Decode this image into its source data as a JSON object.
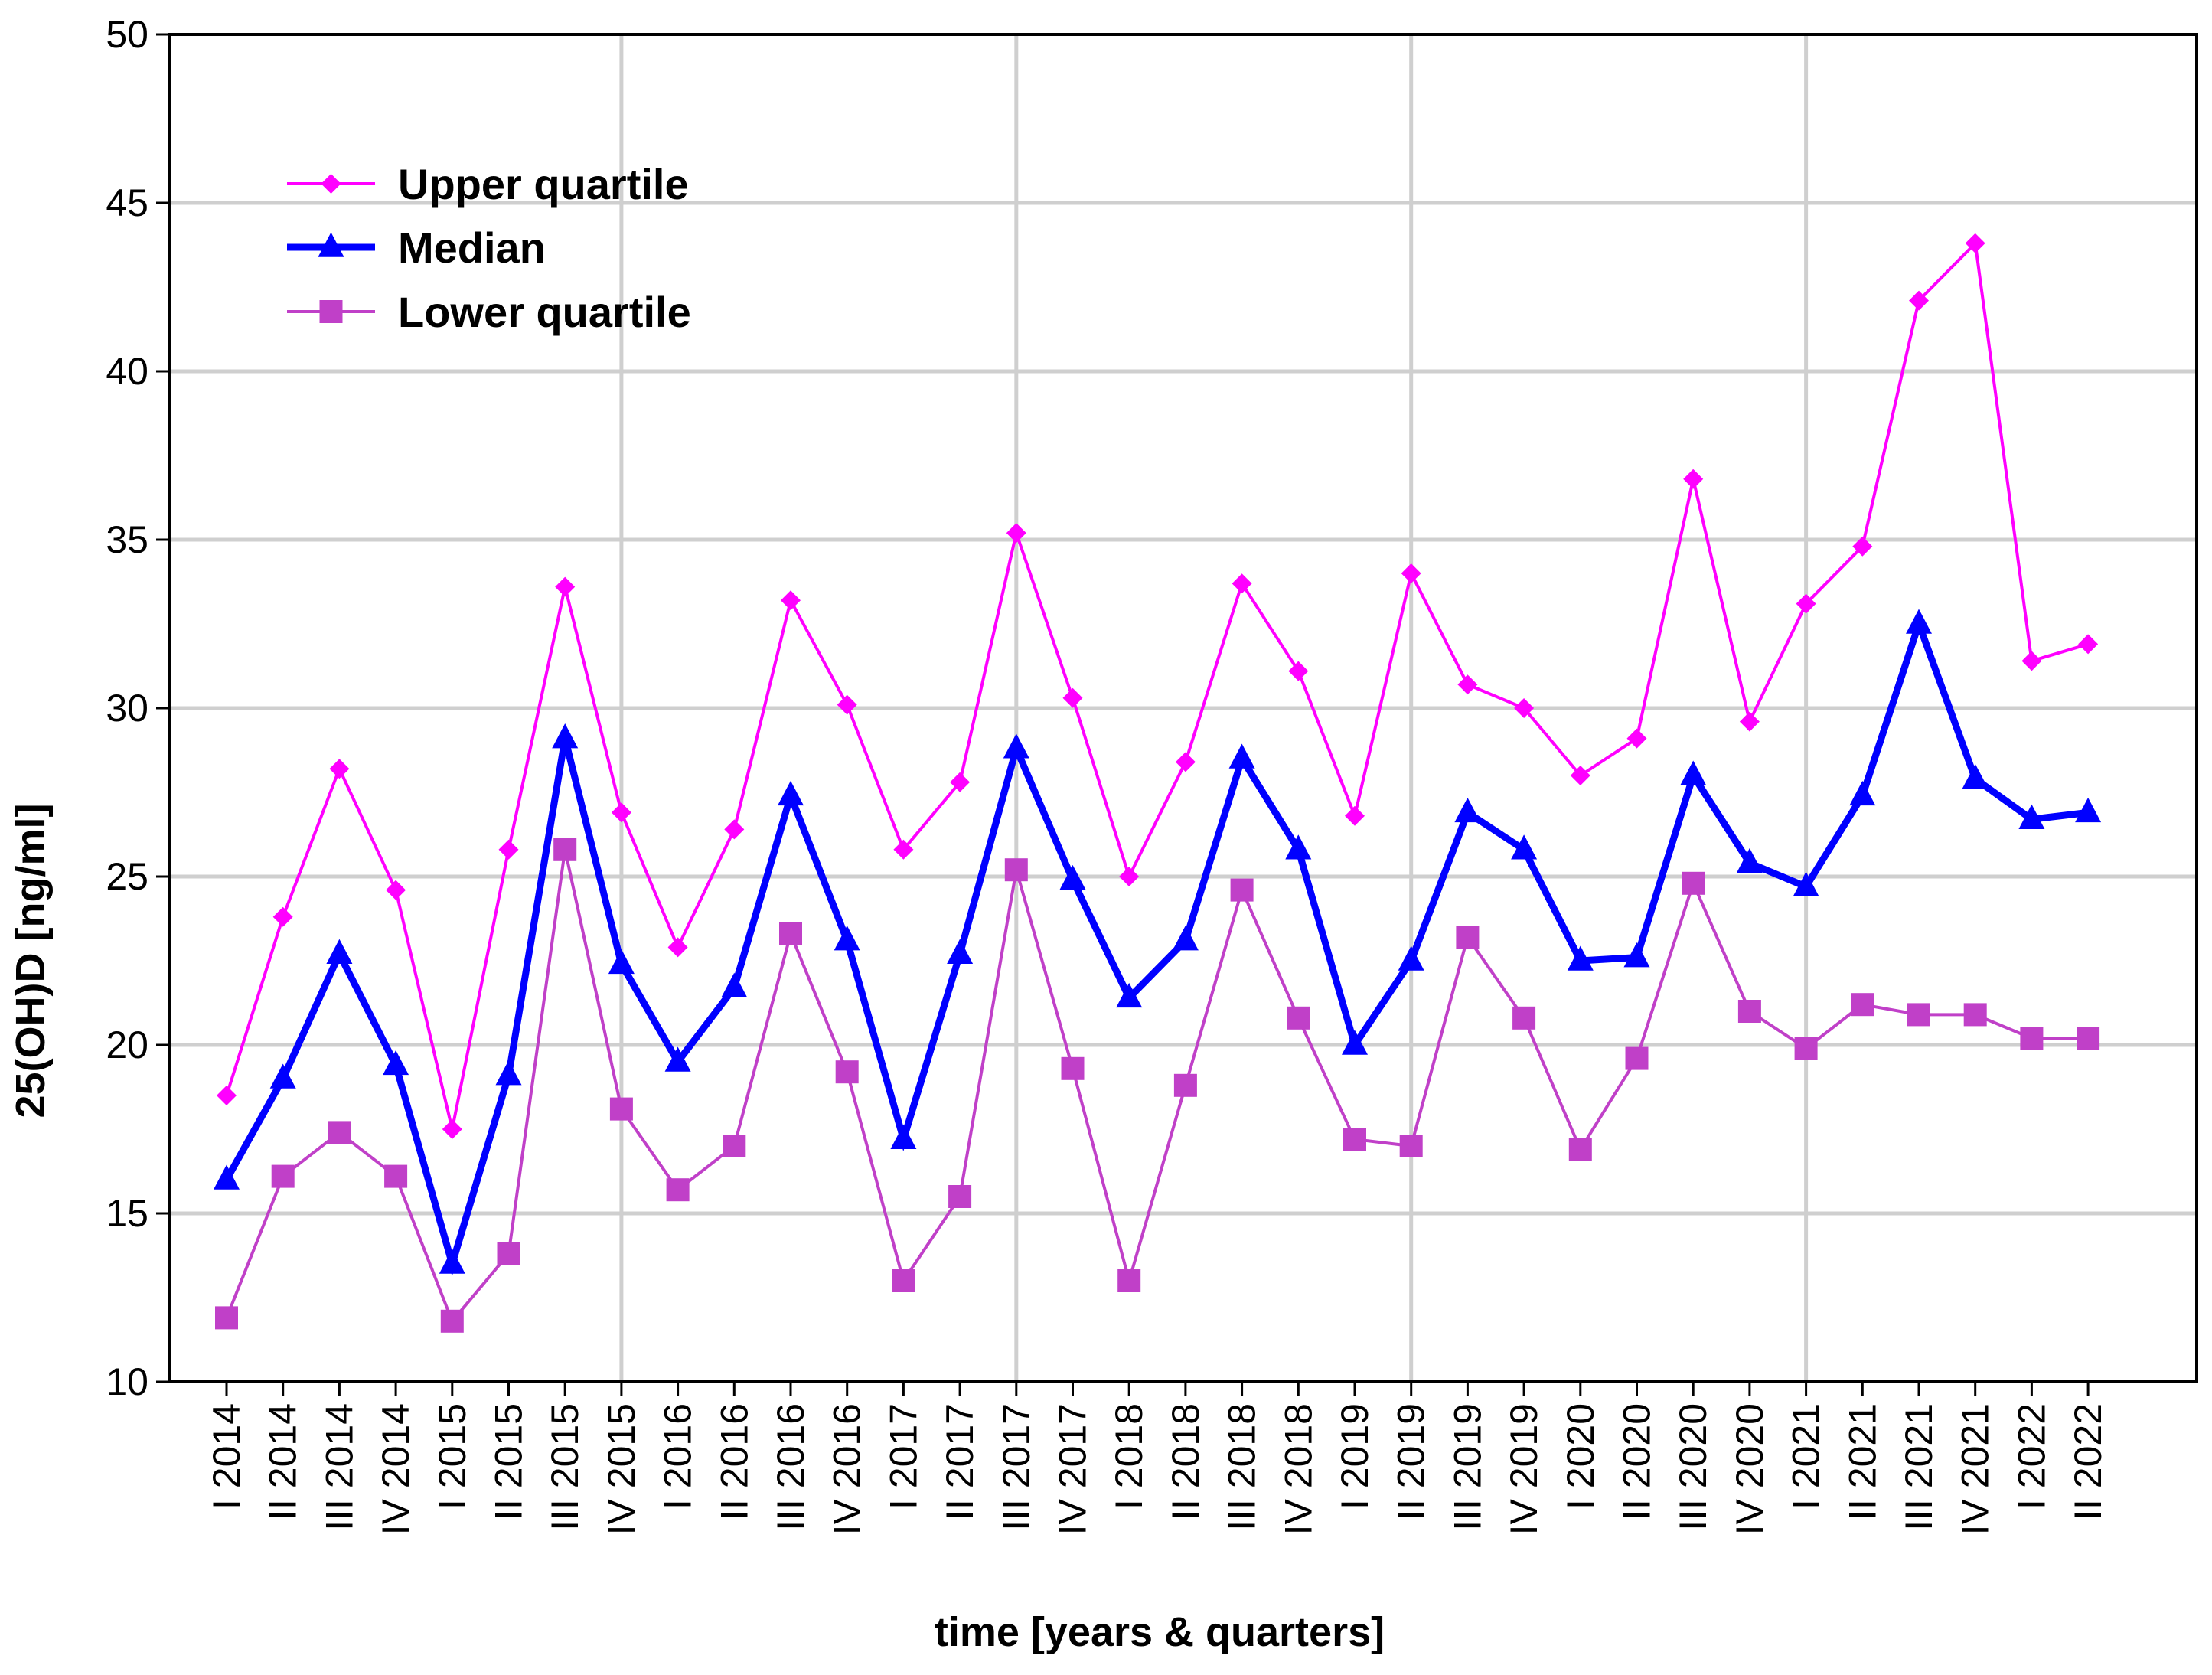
{
  "chart_data": {
    "type": "line",
    "xlabel": "time [years & quarters]",
    "ylabel": "25(OH)D [ng/ml]",
    "ylim": [
      10,
      50
    ],
    "yticks": [
      "10",
      "15",
      "20",
      "25",
      "30",
      "35",
      "40",
      "45",
      "50"
    ],
    "grid": true,
    "legend_position": "top-left",
    "categories": [
      "I 2014",
      "II 2014",
      "III 2014",
      "IV 2014",
      "I 2015",
      "II 2015",
      "III 2015",
      "IV 2015",
      "I 2016",
      "II 2016",
      "III 2016",
      "IV 2016",
      "I 2017",
      "II 2017",
      "III 2017",
      "IV 2017",
      "I 2018",
      "II 2018",
      "III 2018",
      "IV 2018",
      "I 2019",
      "II 2019",
      "III 2019",
      "IV 2019",
      "I 2020",
      "II 2020",
      "III 2020",
      "IV 2020",
      "I 2021",
      "II 2021",
      "III 2021",
      "IV 2021",
      "I 2022",
      "II 2022"
    ],
    "series": [
      {
        "name": "Upper quartile",
        "color": "#ff00ff",
        "marker": "diamond",
        "values": [
          18.5,
          23.8,
          28.2,
          24.6,
          17.5,
          25.8,
          33.6,
          26.9,
          22.9,
          26.4,
          33.2,
          30.1,
          25.8,
          27.8,
          35.2,
          30.3,
          25.0,
          28.4,
          33.7,
          31.1,
          26.8,
          34.0,
          30.7,
          30.0,
          28.0,
          29.1,
          36.8,
          29.6,
          33.1,
          34.8,
          42.1,
          43.8,
          31.4,
          31.9
        ]
      },
      {
        "name": "Median",
        "color": "#0000ff",
        "marker": "triangle",
        "values": [
          16.0,
          19.0,
          22.7,
          19.4,
          13.5,
          19.1,
          29.1,
          22.4,
          19.5,
          21.7,
          27.4,
          23.1,
          17.2,
          22.7,
          28.8,
          24.9,
          21.4,
          23.1,
          28.5,
          25.8,
          20.0,
          22.5,
          26.9,
          25.8,
          22.5,
          22.6,
          28.0,
          25.4,
          24.7,
          27.4,
          32.5,
          27.9,
          26.7,
          26.9
        ]
      },
      {
        "name": "Lower quartile",
        "color": "#c040c8",
        "marker": "square",
        "values": [
          11.9,
          16.1,
          17.4,
          16.1,
          11.8,
          13.8,
          25.8,
          18.1,
          15.7,
          17.0,
          23.3,
          19.2,
          13.0,
          15.5,
          25.2,
          19.3,
          13.0,
          18.8,
          24.6,
          20.8,
          17.2,
          17.0,
          23.2,
          20.8,
          16.9,
          19.6,
          24.8,
          21.0,
          19.9,
          21.2,
          20.9,
          20.9,
          20.2,
          20.2
        ]
      }
    ]
  }
}
